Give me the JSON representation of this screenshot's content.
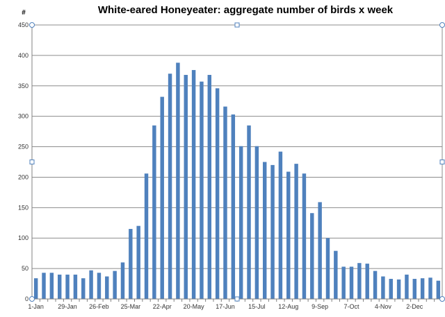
{
  "chart_data": {
    "type": "bar",
    "title": "White-eared Honeyeater: aggregate number of birds x week",
    "ylabel": "#",
    "xlabel": "",
    "ylim": [
      0,
      450
    ],
    "yticks": [
      0,
      50,
      100,
      150,
      200,
      250,
      300,
      350,
      400,
      450
    ],
    "grid": true,
    "legend": "none",
    "bar_color": "#4f81bd",
    "x_tick_labels": [
      "1-Jan",
      "29-Jan",
      "26-Feb",
      "25-Mar",
      "22-Apr",
      "20-May",
      "17-Jun",
      "15-Jul",
      "12-Aug",
      "9-Sep",
      "7-Oct",
      "4-Nov",
      "2-Dec"
    ],
    "x_tick_every": 4,
    "values": [
      34,
      43,
      43,
      40,
      40,
      40,
      34,
      47,
      43,
      37,
      46,
      60,
      115,
      120,
      206,
      285,
      332,
      370,
      388,
      368,
      376,
      357,
      368,
      346,
      316,
      303,
      251,
      285,
      251,
      225,
      220,
      242,
      209,
      222,
      206,
      141,
      159,
      100,
      79,
      53,
      53,
      59,
      58,
      46,
      37,
      33,
      32,
      40,
      33,
      34,
      35,
      30
    ]
  }
}
